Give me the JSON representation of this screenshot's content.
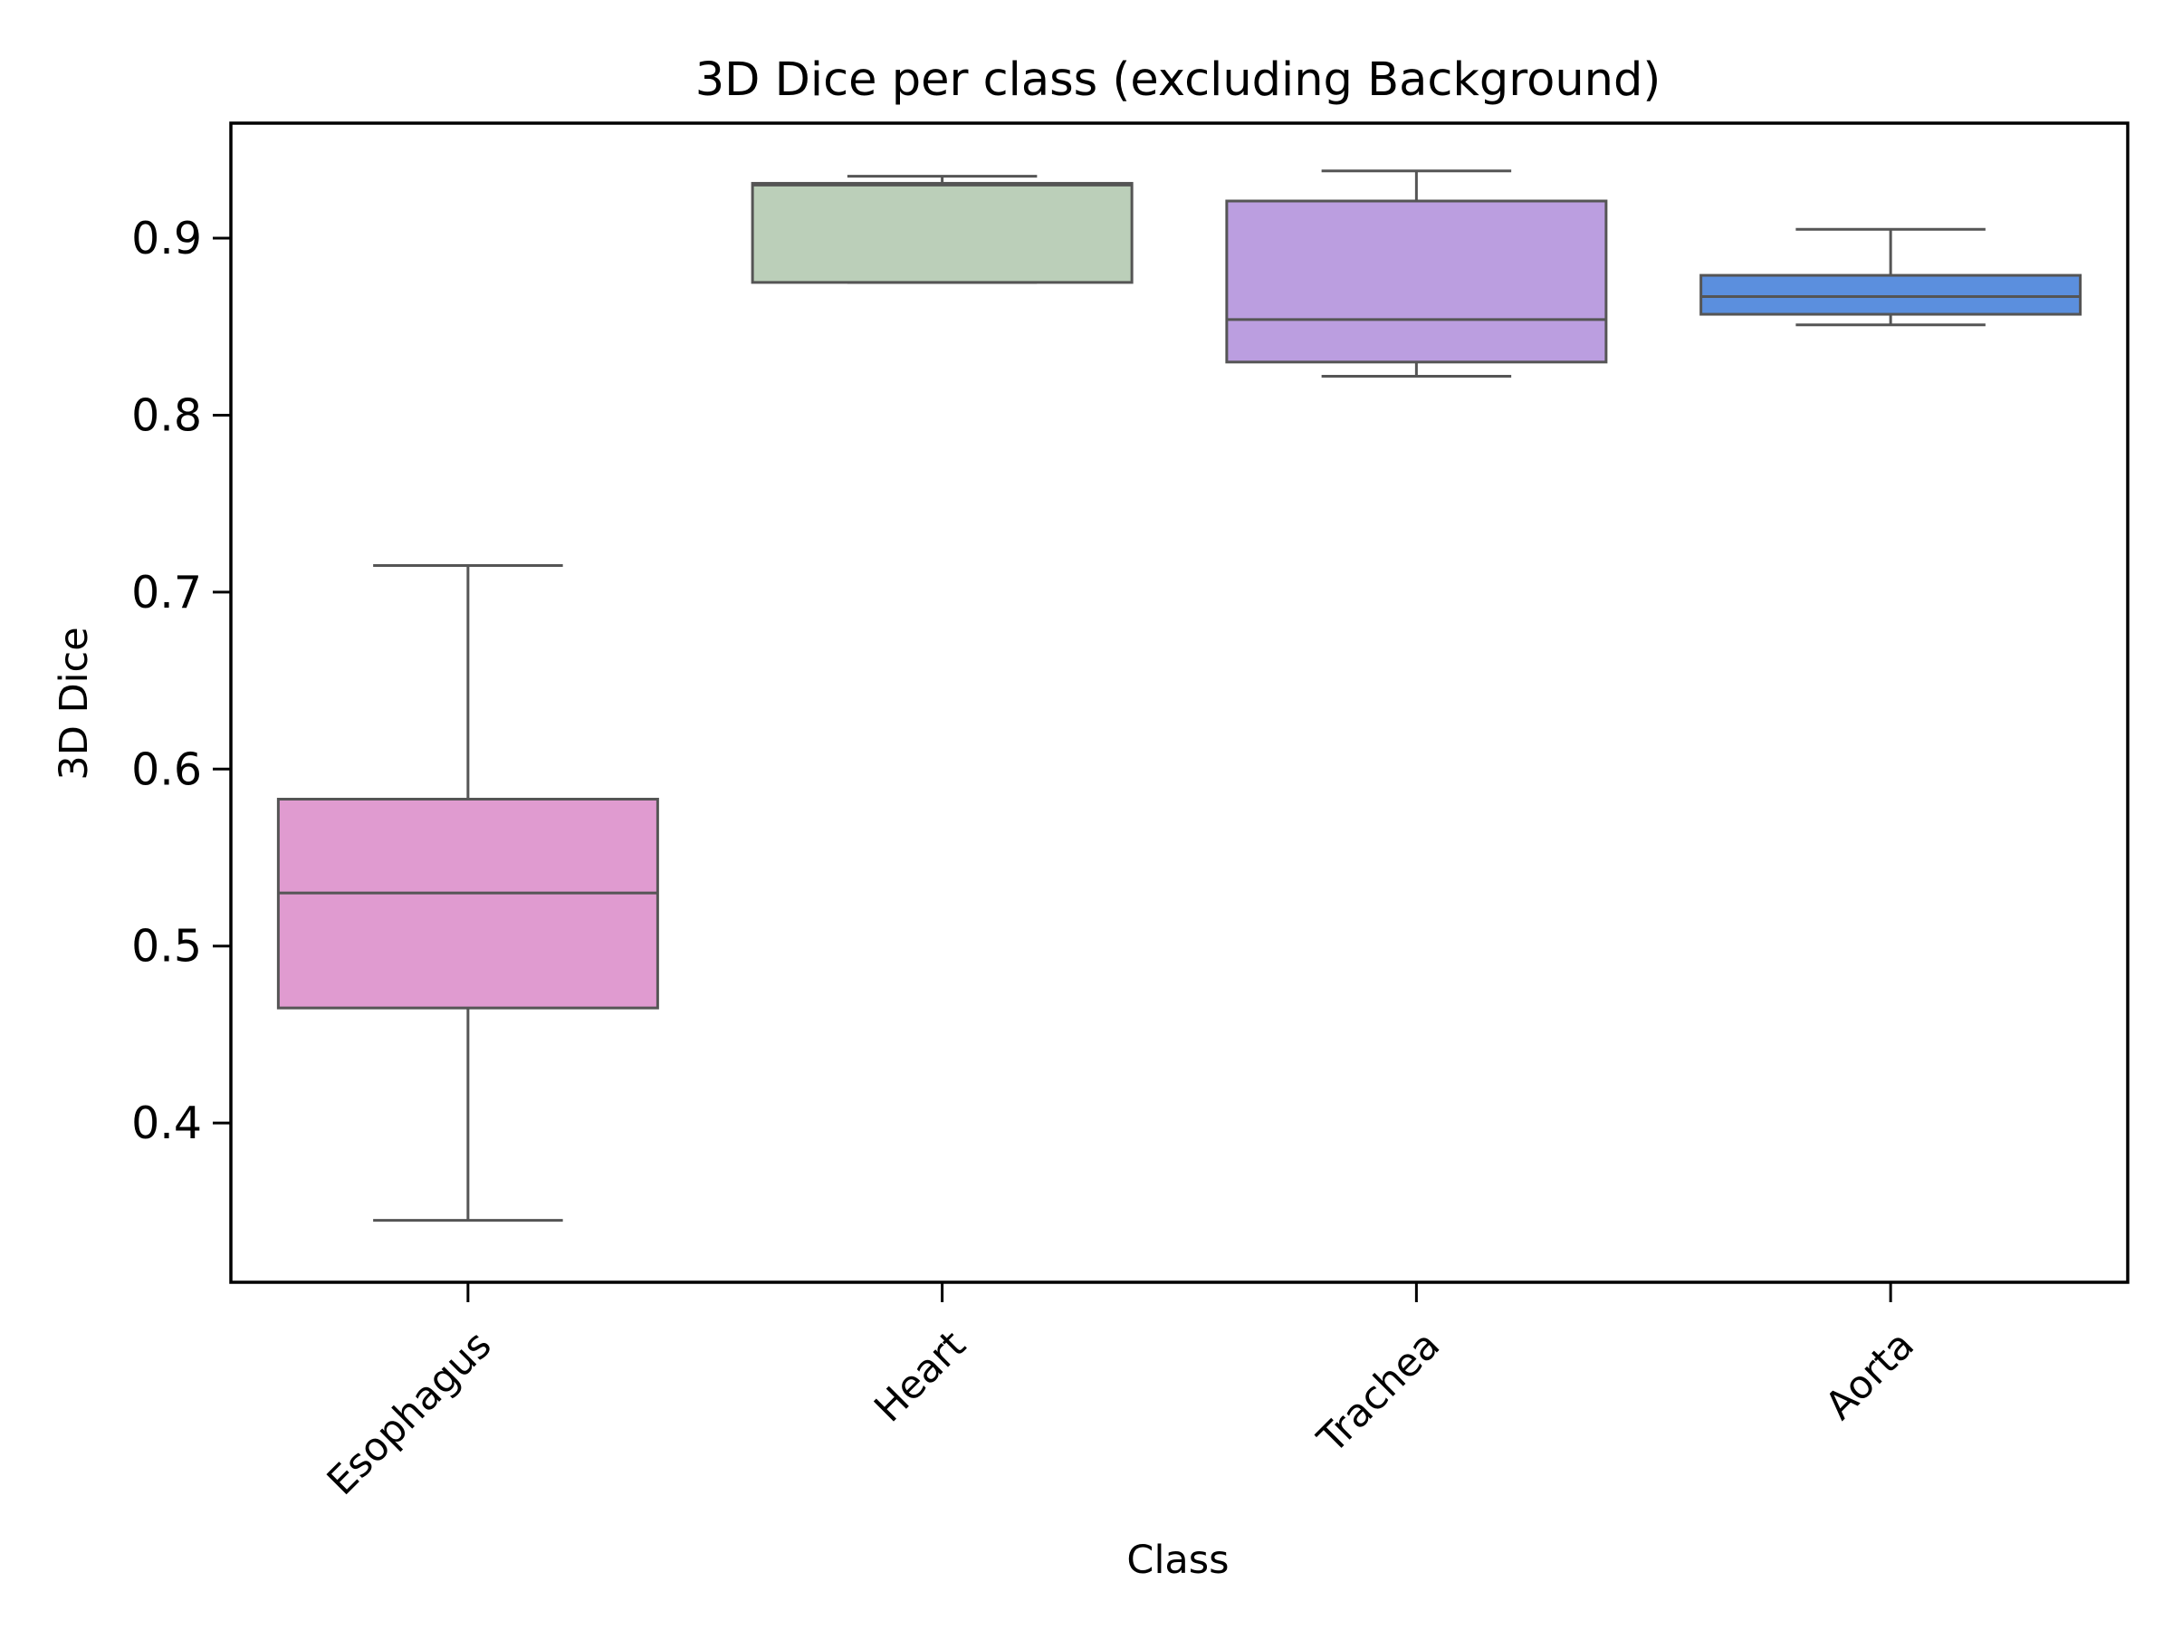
{
  "chart_data": {
    "type": "box",
    "title": "3D Dice per class (excluding Background)",
    "xlabel": "Class",
    "ylabel": "3D Dice",
    "ylim": [
      0.31,
      0.965
    ],
    "yticks": [
      0.4,
      0.5,
      0.6,
      0.7,
      0.8,
      0.9
    ],
    "ytick_labels": [
      "0.4",
      "0.5",
      "0.6",
      "0.7",
      "0.8",
      "0.9"
    ],
    "grid": false,
    "categories": [
      "Esophagus",
      "Heart",
      "Trachea",
      "Aorta"
    ],
    "boxes": [
      {
        "category": "Esophagus",
        "whisker_low": 0.345,
        "q1": 0.465,
        "median": 0.53,
        "q3": 0.583,
        "whisker_high": 0.715,
        "color": "#e09bd0"
      },
      {
        "category": "Heart",
        "whisker_low": 0.875,
        "q1": 0.875,
        "median": 0.93,
        "q3": 0.931,
        "whisker_high": 0.935,
        "color": "#bbcfb9"
      },
      {
        "category": "Trachea",
        "whisker_low": 0.822,
        "q1": 0.83,
        "median": 0.854,
        "q3": 0.921,
        "whisker_high": 0.938,
        "color": "#bb9ee0"
      },
      {
        "category": "Aorta",
        "whisker_low": 0.851,
        "q1": 0.857,
        "median": 0.867,
        "q3": 0.879,
        "whisker_high": 0.905,
        "color": "#5b8fde"
      }
    ],
    "line_color": "#555555"
  }
}
